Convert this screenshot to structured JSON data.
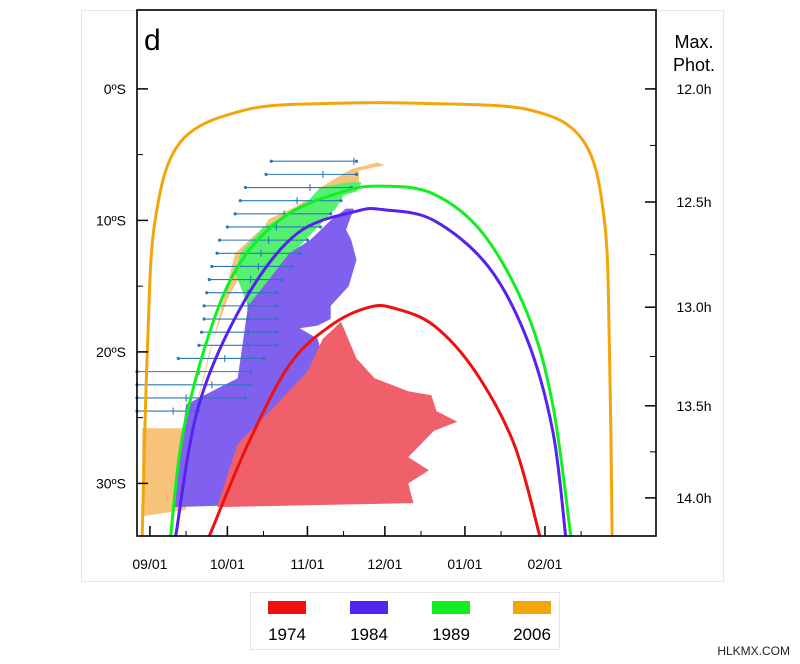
{
  "panel_label": "d",
  "right_axis_title": [
    "Max.",
    "Phot."
  ],
  "watermark": "HLKMX.COM",
  "colors": {
    "1974": "#ee1111",
    "1984": "#5522ee",
    "1989": "#11ee22",
    "2006": "#f2a60c",
    "fill_1974": "#f0606a",
    "fill_1984": "#8060ee",
    "fill_1989": "#55f070",
    "fill_2006": "#f7c27a",
    "errorbar": "#2a78b8"
  },
  "chart_data": {
    "type": "line",
    "x_axis": {
      "tick_labels": [
        "09/01",
        "10/01",
        "11/01",
        "12/01",
        "01/01",
        "02/01"
      ],
      "range": [
        "08/27",
        "03/16"
      ]
    },
    "y_axis_left": {
      "tick_labels": [
        "0ºS",
        "10ºS",
        "20ºS",
        "30ºS"
      ],
      "range": [
        -6,
        34
      ],
      "inverted": true
    },
    "y_axis_right": {
      "tick_labels": [
        "12.0h",
        "12.5h",
        "13.0h",
        "13.5h",
        "14.0h"
      ]
    },
    "legend": [
      "1974",
      "1984",
      "1989",
      "2006"
    ],
    "legend_position": "bottom",
    "series": [
      {
        "name": "2006",
        "type": "line",
        "points": [
          [
            "08/29",
            34
          ],
          [
            "08/31",
            20
          ],
          [
            "09/03",
            10
          ],
          [
            "09/13",
            4
          ],
          [
            "10/08",
            1.6
          ],
          [
            "11/10",
            1.1
          ],
          [
            "12/16",
            1.1
          ],
          [
            "01/26",
            1.6
          ],
          [
            "02/16",
            4
          ],
          [
            "02/24",
            10
          ],
          [
            "02/26",
            20
          ],
          [
            "02/27",
            34
          ]
        ]
      },
      {
        "name": "1989",
        "type": "line",
        "points": [
          [
            "09/09",
            34
          ],
          [
            "09/15",
            25
          ],
          [
            "10/01",
            15
          ],
          [
            "10/21",
            10
          ],
          [
            "11/15",
            7.8
          ],
          [
            "12/01",
            7.4
          ],
          [
            "12/20",
            8
          ],
          [
            "01/08",
            11
          ],
          [
            "01/25",
            17
          ],
          [
            "02/04",
            24
          ],
          [
            "02/11",
            34
          ]
        ]
      },
      {
        "name": "1984",
        "type": "line",
        "points": [
          [
            "09/11",
            34
          ],
          [
            "09/20",
            24
          ],
          [
            "10/08",
            16
          ],
          [
            "10/28",
            11
          ],
          [
            "11/20",
            9.3
          ],
          [
            "12/01",
            9.2
          ],
          [
            "12/20",
            10
          ],
          [
            "01/10",
            13.5
          ],
          [
            "01/25",
            19
          ],
          [
            "02/04",
            26
          ],
          [
            "02/09",
            34
          ]
        ]
      },
      {
        "name": "1974",
        "type": "line",
        "points": [
          [
            "09/24",
            34
          ],
          [
            "10/09",
            27
          ],
          [
            "10/25",
            21
          ],
          [
            "11/10",
            18
          ],
          [
            "11/25",
            16.6
          ],
          [
            "12/05",
            16.7
          ],
          [
            "12/20",
            18
          ],
          [
            "01/05",
            21.5
          ],
          [
            "01/20",
            27
          ],
          [
            "01/30",
            34
          ]
        ]
      },
      {
        "name": "2006",
        "type": "area",
        "points": [
          [
            "08/29",
            25.8
          ],
          [
            "09/17",
            25.8
          ],
          [
            "10/04",
            12.5
          ],
          [
            "10/15",
            10.5
          ],
          [
            "10/30",
            9
          ],
          [
            "11/06",
            7.5
          ],
          [
            "11/18",
            6.1
          ],
          [
            "11/28",
            5.6
          ],
          [
            "12/01",
            5.8
          ],
          [
            "11/21",
            6.2
          ],
          [
            "11/21",
            7.3
          ],
          [
            "11/14",
            7.6
          ],
          [
            "11/10",
            8.3
          ],
          [
            "10/31",
            8.5
          ],
          [
            "10/27",
            9
          ],
          [
            "10/17",
            9.9
          ],
          [
            "10/14",
            11
          ],
          [
            "10/11",
            12.4
          ],
          [
            "10/01",
            16
          ],
          [
            "09/24",
            20
          ],
          [
            "09/19",
            24
          ],
          [
            "09/15",
            32
          ],
          [
            "08/29",
            32.5
          ]
        ]
      },
      {
        "name": "1989",
        "type": "area",
        "points": [
          [
            "10/04",
            14
          ],
          [
            "10/06",
            12.5
          ],
          [
            "10/15",
            10.5
          ],
          [
            "10/30",
            9
          ],
          [
            "11/06",
            7.5
          ],
          [
            "11/17",
            7.1
          ],
          [
            "11/22",
            7.1
          ],
          [
            "11/20",
            7.8
          ],
          [
            "11/15",
            8.1
          ],
          [
            "11/12",
            9.1
          ],
          [
            "11/05",
            10.5
          ],
          [
            "10/24",
            13
          ],
          [
            "10/17",
            15
          ],
          [
            "10/10",
            17
          ]
        ]
      },
      {
        "name": "1984",
        "type": "area",
        "points": [
          [
            "09/10",
            31.8
          ],
          [
            "09/15",
            24
          ],
          [
            "09/30",
            22.5
          ],
          [
            "10/05",
            22
          ],
          [
            "10/09",
            16.5
          ],
          [
            "10/15",
            15
          ],
          [
            "10/19",
            14
          ],
          [
            "10/25",
            12.5
          ],
          [
            "11/02",
            11.5
          ],
          [
            "11/10",
            10
          ],
          [
            "11/16",
            9.1
          ],
          [
            "11/19",
            9.1
          ],
          [
            "11/16",
            10.7
          ],
          [
            "11/18",
            11.5
          ],
          [
            "11/20",
            13
          ],
          [
            "11/17",
            15
          ],
          [
            "11/10",
            16.5
          ],
          [
            "11/10",
            17.5
          ],
          [
            "11/05",
            18
          ],
          [
            "10/29",
            18.2
          ],
          [
            "11/05",
            19
          ],
          [
            "11/07",
            20.5
          ],
          [
            "11/09",
            21.5
          ],
          [
            "11/12",
            22.5
          ],
          [
            "11/24",
            23.5
          ],
          [
            "12/14",
            24
          ],
          [
            "12/29",
            25.3
          ],
          [
            "12/20",
            26
          ],
          [
            "12/10",
            28
          ],
          [
            "12/18",
            29
          ],
          [
            "12/10",
            30
          ],
          [
            "12/12",
            31.5
          ],
          [
            "11/01",
            31.5
          ]
        ]
      },
      {
        "name": "1974",
        "type": "area",
        "points": [
          [
            "09/27",
            31.8
          ],
          [
            "10/05",
            27
          ],
          [
            "10/20",
            24
          ],
          [
            "11/01",
            21.5
          ],
          [
            "11/07",
            19
          ],
          [
            "11/14",
            17.7
          ],
          [
            "11/20",
            20.5
          ],
          [
            "11/27",
            22
          ],
          [
            "12/10",
            23
          ],
          [
            "12/19",
            23.3
          ],
          [
            "12/21",
            24.5
          ],
          [
            "12/29",
            25.3
          ],
          [
            "12/20",
            26
          ],
          [
            "12/10",
            28
          ],
          [
            "12/18",
            29
          ],
          [
            "12/10",
            30
          ],
          [
            "12/12",
            31.5
          ]
        ]
      }
    ],
    "error_bars": [
      {
        "lat": 5.5,
        "x": [
          "11/19",
          "10/18",
          "11/20"
        ]
      },
      {
        "lat": 6.5,
        "x": [
          "11/07",
          "10/16",
          "11/20"
        ]
      },
      {
        "lat": 7.5,
        "x": [
          "11/02",
          "10/08",
          "11/18"
        ]
      },
      {
        "lat": 8.5,
        "x": [
          "10/28",
          "10/06",
          "11/14"
        ]
      },
      {
        "lat": 9.5,
        "x": [
          "10/23",
          "10/04",
          "11/10"
        ]
      },
      {
        "lat": 10.5,
        "x": [
          "10/20",
          "10/01",
          "11/06"
        ]
      },
      {
        "lat": 11.5,
        "x": [
          "10/17",
          "09/28",
          "11/01"
        ]
      },
      {
        "lat": 12.5,
        "x": [
          "10/14",
          "09/27",
          "10/29"
        ]
      },
      {
        "lat": 13.5,
        "x": [
          "10/13",
          "09/25",
          "10/26"
        ]
      },
      {
        "lat": 14.5,
        "x": [
          "10/10",
          "09/24",
          "10/22"
        ]
      },
      {
        "lat": 15.5,
        "x": [
          "10/09",
          "09/23",
          "10/20"
        ]
      },
      {
        "lat": 16.5,
        "x": [
          "10/09",
          "09/22",
          "10/20"
        ]
      },
      {
        "lat": 17.5,
        "x": [
          "10/09",
          "09/22",
          "10/20"
        ]
      },
      {
        "lat": 18.5,
        "x": [
          "10/09",
          "09/21",
          "10/20"
        ]
      },
      {
        "lat": 19.5,
        "x": [
          "10/09",
          "09/20",
          "10/20"
        ]
      },
      {
        "lat": 20.5,
        "x": [
          "09/30",
          "09/12",
          "10/15"
        ]
      },
      {
        "lat": 21.5,
        "x": [
          "09/20",
          "08/27",
          "10/10"
        ]
      },
      {
        "lat": 22.5,
        "x": [
          "09/25",
          "08/27",
          "10/10"
        ]
      },
      {
        "lat": 23.5,
        "x": [
          "09/15",
          "08/27",
          "10/08"
        ]
      },
      {
        "lat": 24.5,
        "x": [
          "09/10",
          "08/27",
          "09/20"
        ]
      }
    ]
  }
}
